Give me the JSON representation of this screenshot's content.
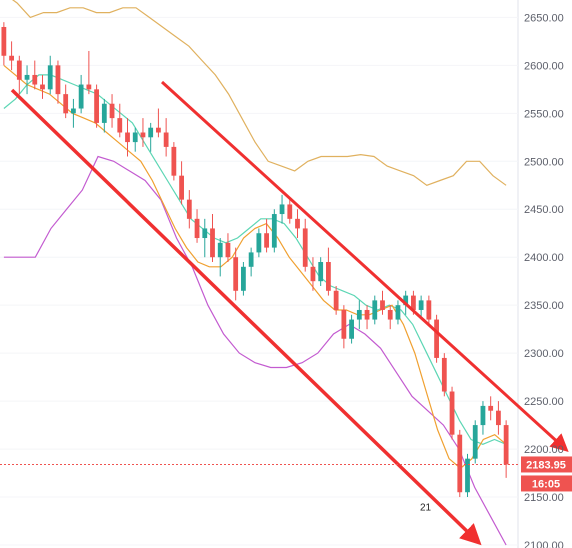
{
  "chart_data": {
    "type": "candlestick",
    "y_axis": {
      "position": "right",
      "min": 2100,
      "max": 2665,
      "ticks": [
        "2100.00",
        "2150.00",
        "2200.00",
        "2250.00",
        "2300.00",
        "2350.00",
        "2400.00",
        "2450.00",
        "2500.00",
        "2550.00",
        "2600.00",
        "2650.00"
      ]
    },
    "last_price": {
      "label": "2183.95",
      "value": 2183.95,
      "countdown": "16:05",
      "color": "#ef5350"
    },
    "low_marker": {
      "label": "21",
      "value": 2140
    },
    "colors": {
      "up": "#26a69a",
      "down": "#ef5350",
      "bb_upper": "#e0b15f",
      "bb_lower": "#c35bd0",
      "ma_slow": "#5cd6b4",
      "ma_fast": "#f0a030",
      "trendline": "#f03030"
    },
    "candles": [
      [
        2640,
        2645,
        2600,
        2610
      ],
      [
        2610,
        2625,
        2595,
        2605
      ],
      [
        2605,
        2610,
        2570,
        2585
      ],
      [
        2585,
        2600,
        2570,
        2590
      ],
      [
        2590,
        2605,
        2575,
        2580
      ],
      [
        2580,
        2590,
        2565,
        2575
      ],
      [
        2575,
        2610,
        2570,
        2600
      ],
      [
        2600,
        2605,
        2560,
        2570
      ],
      [
        2570,
        2580,
        2545,
        2550
      ],
      [
        2550,
        2565,
        2535,
        2555
      ],
      [
        2555,
        2590,
        2550,
        2580
      ],
      [
        2580,
        2615,
        2570,
        2575
      ],
      [
        2575,
        2580,
        2535,
        2540
      ],
      [
        2540,
        2565,
        2530,
        2560
      ],
      [
        2560,
        2570,
        2535,
        2545
      ],
      [
        2545,
        2560,
        2525,
        2530
      ],
      [
        2530,
        2545,
        2505,
        2520
      ],
      [
        2520,
        2535,
        2510,
        2530
      ],
      [
        2530,
        2545,
        2515,
        2525
      ],
      [
        2525,
        2540,
        2510,
        2535
      ],
      [
        2535,
        2555,
        2525,
        2530
      ],
      [
        2530,
        2545,
        2505,
        2515
      ],
      [
        2515,
        2520,
        2480,
        2485
      ],
      [
        2485,
        2500,
        2455,
        2460
      ],
      [
        2460,
        2470,
        2430,
        2440
      ],
      [
        2440,
        2450,
        2415,
        2420
      ],
      [
        2420,
        2440,
        2400,
        2430
      ],
      [
        2430,
        2445,
        2395,
        2400
      ],
      [
        2400,
        2420,
        2380,
        2415
      ],
      [
        2415,
        2425,
        2395,
        2400
      ],
      [
        2400,
        2410,
        2355,
        2365
      ],
      [
        2365,
        2395,
        2360,
        2390
      ],
      [
        2390,
        2410,
        2380,
        2405
      ],
      [
        2405,
        2430,
        2400,
        2425
      ],
      [
        2425,
        2440,
        2405,
        2410
      ],
      [
        2410,
        2450,
        2405,
        2445
      ],
      [
        2445,
        2465,
        2435,
        2455
      ],
      [
        2455,
        2460,
        2435,
        2440
      ],
      [
        2440,
        2450,
        2420,
        2430
      ],
      [
        2430,
        2440,
        2385,
        2390
      ],
      [
        2390,
        2400,
        2365,
        2375
      ],
      [
        2375,
        2400,
        2370,
        2395
      ],
      [
        2395,
        2410,
        2360,
        2365
      ],
      [
        2365,
        2370,
        2340,
        2345
      ],
      [
        2345,
        2350,
        2305,
        2315
      ],
      [
        2315,
        2340,
        2310,
        2335
      ],
      [
        2335,
        2355,
        2325,
        2345
      ],
      [
        2345,
        2350,
        2325,
        2335
      ],
      [
        2335,
        2360,
        2330,
        2355
      ],
      [
        2355,
        2365,
        2340,
        2345
      ],
      [
        2345,
        2350,
        2325,
        2335
      ],
      [
        2335,
        2355,
        2330,
        2350
      ],
      [
        2350,
        2365,
        2340,
        2360
      ],
      [
        2360,
        2365,
        2340,
        2345
      ],
      [
        2345,
        2360,
        2335,
        2355
      ],
      [
        2355,
        2360,
        2330,
        2335
      ],
      [
        2335,
        2340,
        2290,
        2295
      ],
      [
        2295,
        2300,
        2255,
        2260
      ],
      [
        2260,
        2265,
        2210,
        2215
      ],
      [
        2215,
        2220,
        2150,
        2155
      ],
      [
        2155,
        2195,
        2150,
        2190
      ],
      [
        2190,
        2230,
        2185,
        2225
      ],
      [
        2225,
        2250,
        2215,
        2245
      ],
      [
        2245,
        2255,
        2230,
        2240
      ],
      [
        2240,
        2250,
        2215,
        2225
      ],
      [
        2225,
        2230,
        2170,
        2184
      ]
    ],
    "bb_upper": [
      2675,
      2665,
      2650,
      2655,
      2655,
      2660,
      2660,
      2655,
      2655,
      2660,
      2660,
      2650,
      2640,
      2630,
      2620,
      2605,
      2590,
      2570,
      2545,
      2520,
      2500,
      2495,
      2490,
      2500,
      2505,
      2505,
      2505,
      2507,
      2505,
      2495,
      2490,
      2485,
      2475,
      2480,
      2485,
      2500,
      2500,
      2485,
      2475
    ],
    "bb_lower": [
      2400,
      2400,
      2400,
      2430,
      2450,
      2470,
      2505,
      2500,
      2490,
      2480,
      2460,
      2420,
      2390,
      2350,
      2320,
      2300,
      2290,
      2285,
      2285,
      2290,
      2300,
      2320,
      2330,
      2320,
      2305,
      2280,
      2255,
      2240,
      2225,
      2200,
      2160,
      2130,
      2100
    ],
    "ma_slow": [
      2555,
      2565,
      2580,
      2590,
      2590,
      2585,
      2580,
      2575,
      2570,
      2560,
      2550,
      2540,
      2520,
      2500,
      2480,
      2460,
      2440,
      2430,
      2420,
      2415,
      2420,
      2430,
      2440,
      2440,
      2435,
      2420,
      2400,
      2380,
      2370,
      2365,
      2360,
      2350,
      2345,
      2350,
      2345,
      2330,
      2305,
      2280,
      2255,
      2230,
      2210,
      2205,
      2210,
      2205
    ],
    "ma_fast": [
      2600,
      2590,
      2580,
      2575,
      2570,
      2560,
      2550,
      2545,
      2540,
      2530,
      2520,
      2510,
      2500,
      2480,
      2455,
      2430,
      2410,
      2395,
      2390,
      2390,
      2400,
      2420,
      2430,
      2435,
      2420,
      2400,
      2385,
      2370,
      2355,
      2345,
      2345,
      2340,
      2340,
      2345,
      2350,
      2330,
      2300,
      2260,
      2220,
      2190,
      2180,
      2190,
      2210,
      2215,
      2205
    ]
  }
}
